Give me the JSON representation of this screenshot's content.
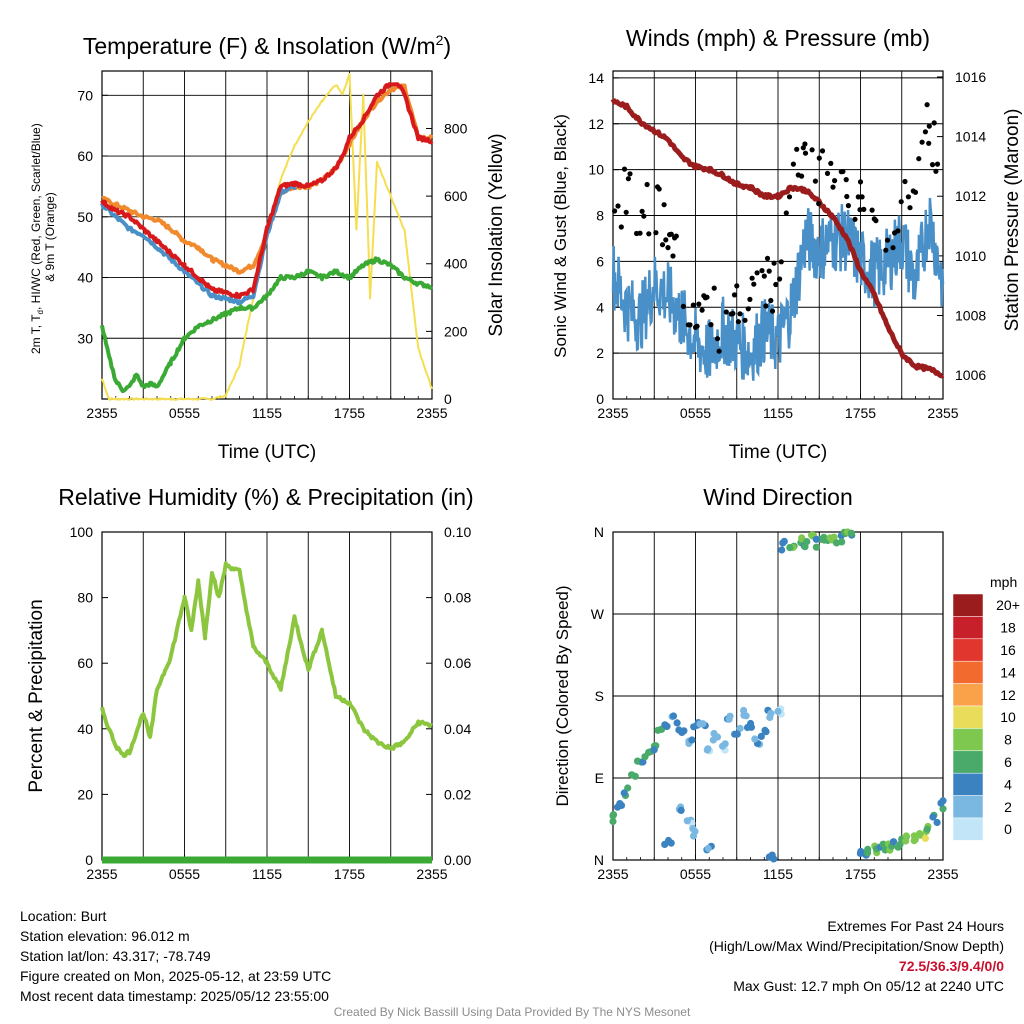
{
  "info": {
    "location": "Location: Burt",
    "elevation": "Station elevation: 96.012 m",
    "latlon": "Station lat/lon: 43.317; -78.749",
    "created": "Figure created on Mon, 2025-05-12, at 23:59 UTC",
    "recent": "Most recent data timestamp: 2025/05/12 23:55:00"
  },
  "extremes": {
    "title": "Extremes For Past 24 Hours",
    "subtitle": "(High/Low/Max Wind/Precipitation/Snow Depth)",
    "values": "72.5/36.3/9.4/0/0",
    "max_gust": "Max Gust: 12.7 mph On 05/12 at 2240 UTC"
  },
  "credit": "Created By Nick Bassill Using Data Provided By The NYS Mesonet",
  "chart_data": [
    {
      "type": "line",
      "title": "Temperature (F) & Insolation (W/m²)",
      "xlabel": "Time (UTC)",
      "ylabel": "2m T, Td, HI/WC (Red, Green, Scarlet/Blue) & 9m T (Orange)",
      "ylabel_lines": [
        "2m T, T",
        "d",
        ", HI/WC (Red, Green, Scarlet/Blue)",
        "& 9m T (Orange)"
      ],
      "ylabel_right": "Solar Insolation (Yellow)",
      "x_ticks": [
        "2355",
        "0555",
        "1155",
        "1755",
        "2355"
      ],
      "x_range_hours": [
        0,
        24
      ],
      "ylim": [
        20,
        74
      ],
      "yticks": [
        30,
        40,
        50,
        60,
        70
      ],
      "ylim_right": [
        0,
        970
      ],
      "yticks_right": [
        0,
        200,
        400,
        600,
        800
      ],
      "colors": {
        "temp": "#d7191c",
        "dewpoint": "#3aaa35",
        "wc": "#4a90c8",
        "t9m": "#f08a2c",
        "solar": "#f5de50"
      },
      "series": [
        {
          "name": "2m T",
          "x": [
            0,
            1,
            2,
            3,
            4,
            5,
            6,
            7,
            8,
            9,
            10,
            11,
            12,
            13,
            14,
            15,
            16,
            17,
            17.5,
            18,
            19,
            20,
            20.5,
            21,
            21.5,
            22,
            23,
            24
          ],
          "values": [
            52.5,
            51,
            50,
            48,
            46,
            44,
            42,
            40,
            38,
            37.5,
            37,
            38,
            48,
            55,
            55.5,
            55,
            56,
            58,
            60,
            63,
            66,
            70,
            71,
            72,
            72,
            70,
            63,
            62.5
          ]
        },
        {
          "name": "9m T",
          "x": [
            0,
            1,
            2,
            3,
            4,
            5,
            6,
            7,
            8,
            9,
            10,
            11,
            12,
            13,
            14,
            15,
            16,
            17,
            18,
            19,
            20,
            21,
            22,
            23,
            24
          ],
          "values": [
            53,
            52,
            51,
            50,
            49.5,
            48,
            46,
            45,
            43,
            42,
            41,
            42,
            47,
            54,
            55,
            55,
            56,
            58,
            62,
            66,
            69,
            71,
            71.5,
            63,
            63
          ]
        },
        {
          "name": "HI/WC",
          "x": [
            0,
            1,
            2,
            3,
            4,
            5,
            6,
            7,
            8,
            9,
            10,
            11,
            12,
            13,
            14
          ],
          "values": [
            52,
            50,
            48,
            47,
            45,
            43,
            41,
            39,
            37,
            36.5,
            36,
            37,
            47,
            54,
            55
          ]
        },
        {
          "name": "Td",
          "x": [
            0,
            0.5,
            1,
            1.5,
            2,
            2.5,
            3,
            3.5,
            4,
            5,
            6,
            7,
            8,
            9,
            10,
            11,
            12,
            13,
            14,
            15,
            16,
            17,
            18,
            19,
            20,
            21,
            22,
            23,
            24
          ],
          "values": [
            32,
            27,
            23,
            21.5,
            22,
            24,
            22,
            22.5,
            22,
            26,
            30,
            32,
            33,
            34,
            35,
            35,
            37,
            40,
            40,
            41,
            40,
            41,
            40,
            42,
            43,
            42,
            40,
            39,
            38.5
          ]
        },
        {
          "name": "Solar",
          "axis": "right",
          "x": [
            0,
            0.5,
            1,
            5,
            8,
            9,
            10,
            11,
            12,
            13,
            14,
            15,
            16,
            17,
            17.5,
            18,
            18.5,
            19,
            19.5,
            20,
            21,
            22,
            23,
            24
          ],
          "values": [
            60,
            0,
            0,
            0,
            0,
            10,
            100,
            300,
            500,
            650,
            750,
            820,
            880,
            930,
            900,
            960,
            500,
            900,
            300,
            700,
            600,
            500,
            150,
            30
          ]
        }
      ]
    },
    {
      "type": "line",
      "title": "Winds (mph) & Pressure (mb)",
      "xlabel": "Time (UTC)",
      "ylabel": "Sonic Wind & Gust (Blue, Black)",
      "ylabel_right": "Station Pressure (Maroon)",
      "x_ticks": [
        "2355",
        "0555",
        "1155",
        "1755",
        "2355"
      ],
      "x_range_hours": [
        0,
        24
      ],
      "ylim": [
        0,
        14.3
      ],
      "yticks": [
        0,
        2,
        4,
        6,
        8,
        10,
        12,
        14
      ],
      "ylim_right": [
        1005.2,
        1016.2
      ],
      "yticks_right": [
        1006,
        1008,
        1010,
        1012,
        1014,
        1016
      ],
      "colors": {
        "wind": "#4a90c8",
        "gust": "#000000",
        "pressure": "#9b1c1c"
      },
      "series": [
        {
          "name": "Pressure",
          "axis": "right",
          "x": [
            0,
            1,
            2,
            3,
            4,
            5,
            6,
            7,
            8,
            9,
            10,
            11,
            12,
            13,
            14,
            15,
            16,
            17,
            18,
            19,
            20,
            21,
            22,
            23,
            24
          ],
          "values": [
            1015.2,
            1015,
            1014.5,
            1014.2,
            1013.9,
            1013.3,
            1013,
            1012.9,
            1012.7,
            1012.4,
            1012.3,
            1012.0,
            1012.0,
            1012.3,
            1012.2,
            1011.8,
            1011.3,
            1010.6,
            1009.5,
            1008.7,
            1007.6,
            1006.7,
            1006.3,
            1006.2,
            1006.0
          ]
        },
        {
          "name": "Wind",
          "x": [
            0,
            1,
            2,
            3,
            4,
            5,
            6,
            7,
            8,
            9,
            10,
            11,
            12,
            13,
            14,
            15,
            16,
            17,
            18,
            19,
            20,
            21,
            22,
            23,
            24
          ],
          "values": [
            5.5,
            4,
            3.5,
            5,
            4.5,
            3.5,
            2.5,
            2,
            3,
            2.5,
            2,
            3,
            2.5,
            4,
            7,
            6.5,
            7,
            7,
            6,
            5.5,
            6,
            7,
            5,
            8,
            5
          ]
        },
        {
          "name": "Gust",
          "type": "scatter",
          "x": [
            0,
            1,
            2,
            3,
            4,
            5,
            6,
            7,
            8,
            9,
            10,
            11,
            12,
            13,
            14,
            15,
            16,
            17,
            18,
            19,
            20,
            21,
            22,
            23,
            24
          ],
          "values": [
            8,
            9,
            8,
            8.5,
            7.5,
            5,
            3.5,
            4,
            3,
            4,
            4.5,
            5,
            5,
            9,
            11,
            9.5,
            10,
            9,
            8.5,
            7,
            6.5,
            8,
            10,
            12,
            9
          ]
        }
      ]
    },
    {
      "type": "line",
      "title": "Relative Humidity (%) & Precipitation (in)",
      "ylabel": "Percent & Precipitation",
      "x_ticks": [
        "2355",
        "0555",
        "1155",
        "1755",
        "2355"
      ],
      "x_range_hours": [
        0,
        24
      ],
      "ylim": [
        0,
        100
      ],
      "yticks": [
        0,
        20,
        40,
        60,
        80,
        100
      ],
      "ylim_right": [
        0,
        0.1
      ],
      "yticks_right": [
        "0.00",
        "0.02",
        "0.04",
        "0.06",
        "0.08",
        "0.10"
      ],
      "colors": {
        "rh": "#8cc63f",
        "precip": "#3aaa35"
      },
      "series": [
        {
          "name": "RH",
          "x": [
            0,
            0.5,
            1,
            1.5,
            2,
            3,
            3.5,
            4,
            5,
            6,
            6.5,
            7,
            7.5,
            8,
            8.5,
            9,
            10,
            11,
            12,
            13,
            14,
            15,
            16,
            17,
            18,
            19,
            20,
            21,
            22,
            23,
            24
          ],
          "values": [
            46,
            40,
            35,
            32,
            33,
            45,
            37,
            52,
            62,
            80,
            70,
            85,
            68,
            88,
            80,
            90,
            88,
            65,
            60,
            52,
            74,
            58,
            70,
            50,
            48,
            40,
            36,
            34,
            36,
            42,
            41
          ]
        },
        {
          "name": "Precipitation",
          "axis": "right",
          "x": [
            0,
            24
          ],
          "values": [
            0,
            0
          ]
        }
      ]
    },
    {
      "type": "scatter",
      "title": "Wind Direction",
      "ylabel": "Direction (Colored By Speed)",
      "x_ticks": [
        "2355",
        "0555",
        "1155",
        "1755",
        "2355"
      ],
      "x_range_hours": [
        0,
        24
      ],
      "y_ticks": [
        "N",
        "E",
        "S",
        "W",
        "N"
      ],
      "ylim_degrees": [
        0,
        360
      ],
      "colorbar": {
        "unit": "mph",
        "labels": [
          "20+",
          "18",
          "16",
          "14",
          "12",
          "10",
          "8",
          "6",
          "4",
          "2",
          "0"
        ],
        "colors": [
          "#9b1c1c",
          "#c8202a",
          "#e0362e",
          "#f26a2e",
          "#f9a24a",
          "#e8dc5a",
          "#7ec850",
          "#4aaa6a",
          "#3a82c0",
          "#7ab8e2",
          "#c2e6f8"
        ]
      },
      "points": [
        {
          "x": 0,
          "dir": 45,
          "spd": 5
        },
        {
          "x": 0.5,
          "dir": 60,
          "spd": 4
        },
        {
          "x": 1,
          "dir": 75,
          "spd": 4
        },
        {
          "x": 1.5,
          "dir": 90,
          "spd": 5
        },
        {
          "x": 2,
          "dir": 105,
          "spd": 4
        },
        {
          "x": 2.5,
          "dir": 115,
          "spd": 5
        },
        {
          "x": 3,
          "dir": 125,
          "spd": 4
        },
        {
          "x": 3.5,
          "dir": 140,
          "spd": 6
        },
        {
          "x": 4,
          "dir": 150,
          "spd": 4
        },
        {
          "x": 4.5,
          "dir": 155,
          "spd": 3
        },
        {
          "x": 5,
          "dir": 140,
          "spd": 3
        },
        {
          "x": 5.5,
          "dir": 130,
          "spd": 2
        },
        {
          "x": 6,
          "dir": 150,
          "spd": 3
        },
        {
          "x": 6.5,
          "dir": 150,
          "spd": 2
        },
        {
          "x": 7,
          "dir": 120,
          "spd": 1
        },
        {
          "x": 7.5,
          "dir": 135,
          "spd": 2
        },
        {
          "x": 8,
          "dir": 125,
          "spd": 1
        },
        {
          "x": 8.5,
          "dir": 155,
          "spd": 2
        },
        {
          "x": 9,
          "dir": 140,
          "spd": 3
        },
        {
          "x": 9.5,
          "dir": 160,
          "spd": 2
        },
        {
          "x": 10,
          "dir": 150,
          "spd": 4
        },
        {
          "x": 10.5,
          "dir": 130,
          "spd": 3
        },
        {
          "x": 11,
          "dir": 140,
          "spd": 3
        },
        {
          "x": 11.5,
          "dir": 160,
          "spd": 2
        },
        {
          "x": 12,
          "dir": 165,
          "spd": 1
        },
        {
          "x": 5,
          "dir": 55,
          "spd": 2
        },
        {
          "x": 5.5,
          "dir": 40,
          "spd": 1
        },
        {
          "x": 6,
          "dir": 30,
          "spd": 2
        },
        {
          "x": 4,
          "dir": 20,
          "spd": 4
        },
        {
          "x": 7,
          "dir": 10,
          "spd": 3
        },
        {
          "x": 11.5,
          "dir": 5,
          "spd": 4
        },
        {
          "x": 12.5,
          "dir": 345,
          "spd": 4
        },
        {
          "x": 13,
          "dir": 340,
          "spd": 6
        },
        {
          "x": 13.5,
          "dir": 350,
          "spd": 7
        },
        {
          "x": 14,
          "dir": 345,
          "spd": 5
        },
        {
          "x": 14.5,
          "dir": 355,
          "spd": 7
        },
        {
          "x": 15,
          "dir": 348,
          "spd": 4
        },
        {
          "x": 15.5,
          "dir": 352,
          "spd": 6
        },
        {
          "x": 16,
          "dir": 356,
          "spd": 7
        },
        {
          "x": 16.5,
          "dir": 353,
          "spd": 5
        },
        {
          "x": 17,
          "dir": 358,
          "spd": 7
        },
        {
          "x": 17.5,
          "dir": 356,
          "spd": 4
        },
        {
          "x": 18,
          "dir": 5,
          "spd": 4
        },
        {
          "x": 18.5,
          "dir": 10,
          "spd": 5
        },
        {
          "x": 19,
          "dir": 12,
          "spd": 6
        },
        {
          "x": 19.5,
          "dir": 15,
          "spd": 4
        },
        {
          "x": 20,
          "dir": 14,
          "spd": 7
        },
        {
          "x": 20.5,
          "dir": 18,
          "spd": 5
        },
        {
          "x": 21,
          "dir": 20,
          "spd": 6
        },
        {
          "x": 21.5,
          "dir": 22,
          "spd": 7
        },
        {
          "x": 22,
          "dir": 25,
          "spd": 7
        },
        {
          "x": 22.5,
          "dir": 28,
          "spd": 8
        },
        {
          "x": 23,
          "dir": 32,
          "spd": 7
        },
        {
          "x": 23.5,
          "dir": 45,
          "spd": 4
        },
        {
          "x": 24,
          "dir": 60,
          "spd": 4
        }
      ]
    }
  ]
}
